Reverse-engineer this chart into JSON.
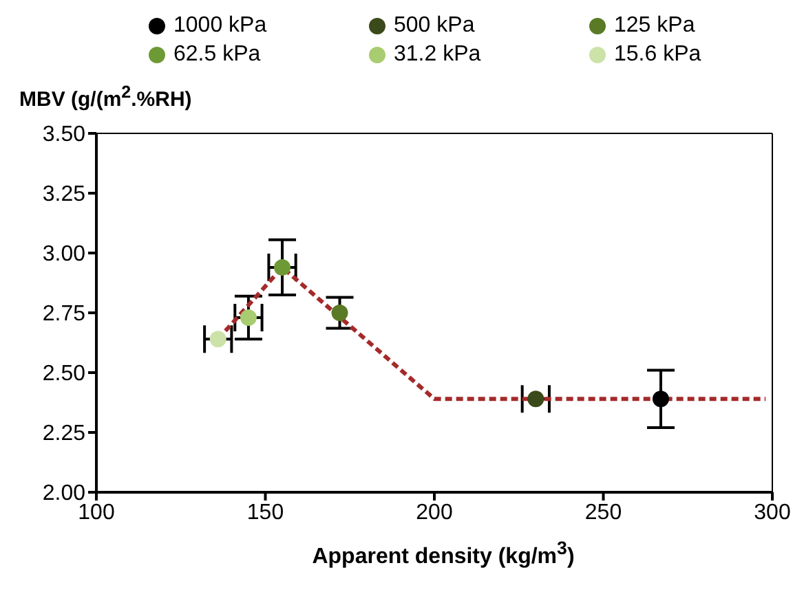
{
  "chart_data": {
    "type": "scatter",
    "xlabel": "Apparent density (kg/m$^{3}$)",
    "ylabel": "MBV (g/(m$^{2}$.%RH)",
    "xlim": [
      100,
      300
    ],
    "xticks": [
      100,
      150,
      200,
      250,
      300
    ],
    "ylim": [
      2,
      3.5
    ],
    "yticks": [
      {
        "value": 2,
        "label": "2.00"
      },
      {
        "value": 2.25,
        "label": "2.25"
      },
      {
        "value": 2.5,
        "label": "2.50"
      },
      {
        "value": 2.75,
        "label": "2.75"
      },
      {
        "value": 3,
        "label": "3.00"
      },
      {
        "value": 3.25,
        "label": "3.25"
      },
      {
        "value": 3.5,
        "label": "3.50"
      }
    ],
    "legend": "top",
    "marker": "circle",
    "series": [
      {
        "name": "1000 kPa",
        "color": "#000000",
        "x": [
          267
        ],
        "values": [
          2.39
        ],
        "errors": [
          0.12
        ],
        "xerrors": [
          null
        ]
      },
      {
        "name": "500 kPa",
        "color": "#3a4a1a",
        "x": [
          230
        ],
        "values": [
          2.39
        ],
        "errors": [
          null
        ],
        "xerrors": [
          4
        ]
      },
      {
        "name": "125 kPa",
        "color": "#5a7a25",
        "x": [
          172
        ],
        "values": [
          2.75
        ],
        "errors": [
          0.065
        ],
        "xerrors": [
          null
        ]
      },
      {
        "name": "62.5 kPa",
        "color": "#6e9a35",
        "x": [
          155
        ],
        "values": [
          2.94
        ],
        "errors": [
          0.115
        ],
        "xerrors": [
          4
        ]
      },
      {
        "name": "31.2 kPa",
        "color": "#a8cc70",
        "x": [
          145
        ],
        "values": [
          2.73
        ],
        "errors": [
          0.09
        ],
        "xerrors": [
          4
        ]
      },
      {
        "name": "15.6 kPa",
        "color": "#cce2a8",
        "x": [
          136
        ],
        "values": [
          2.64
        ],
        "errors": [
          null
        ],
        "xerrors": [
          4
        ]
      },
      {
        "type": "line",
        "color": "#a52a2a",
        "line_style": "dashed",
        "marker": "none",
        "x": [
          136,
          155,
          200,
          298
        ],
        "values": [
          2.64,
          2.94,
          2.39,
          2.39
        ]
      }
    ]
  }
}
